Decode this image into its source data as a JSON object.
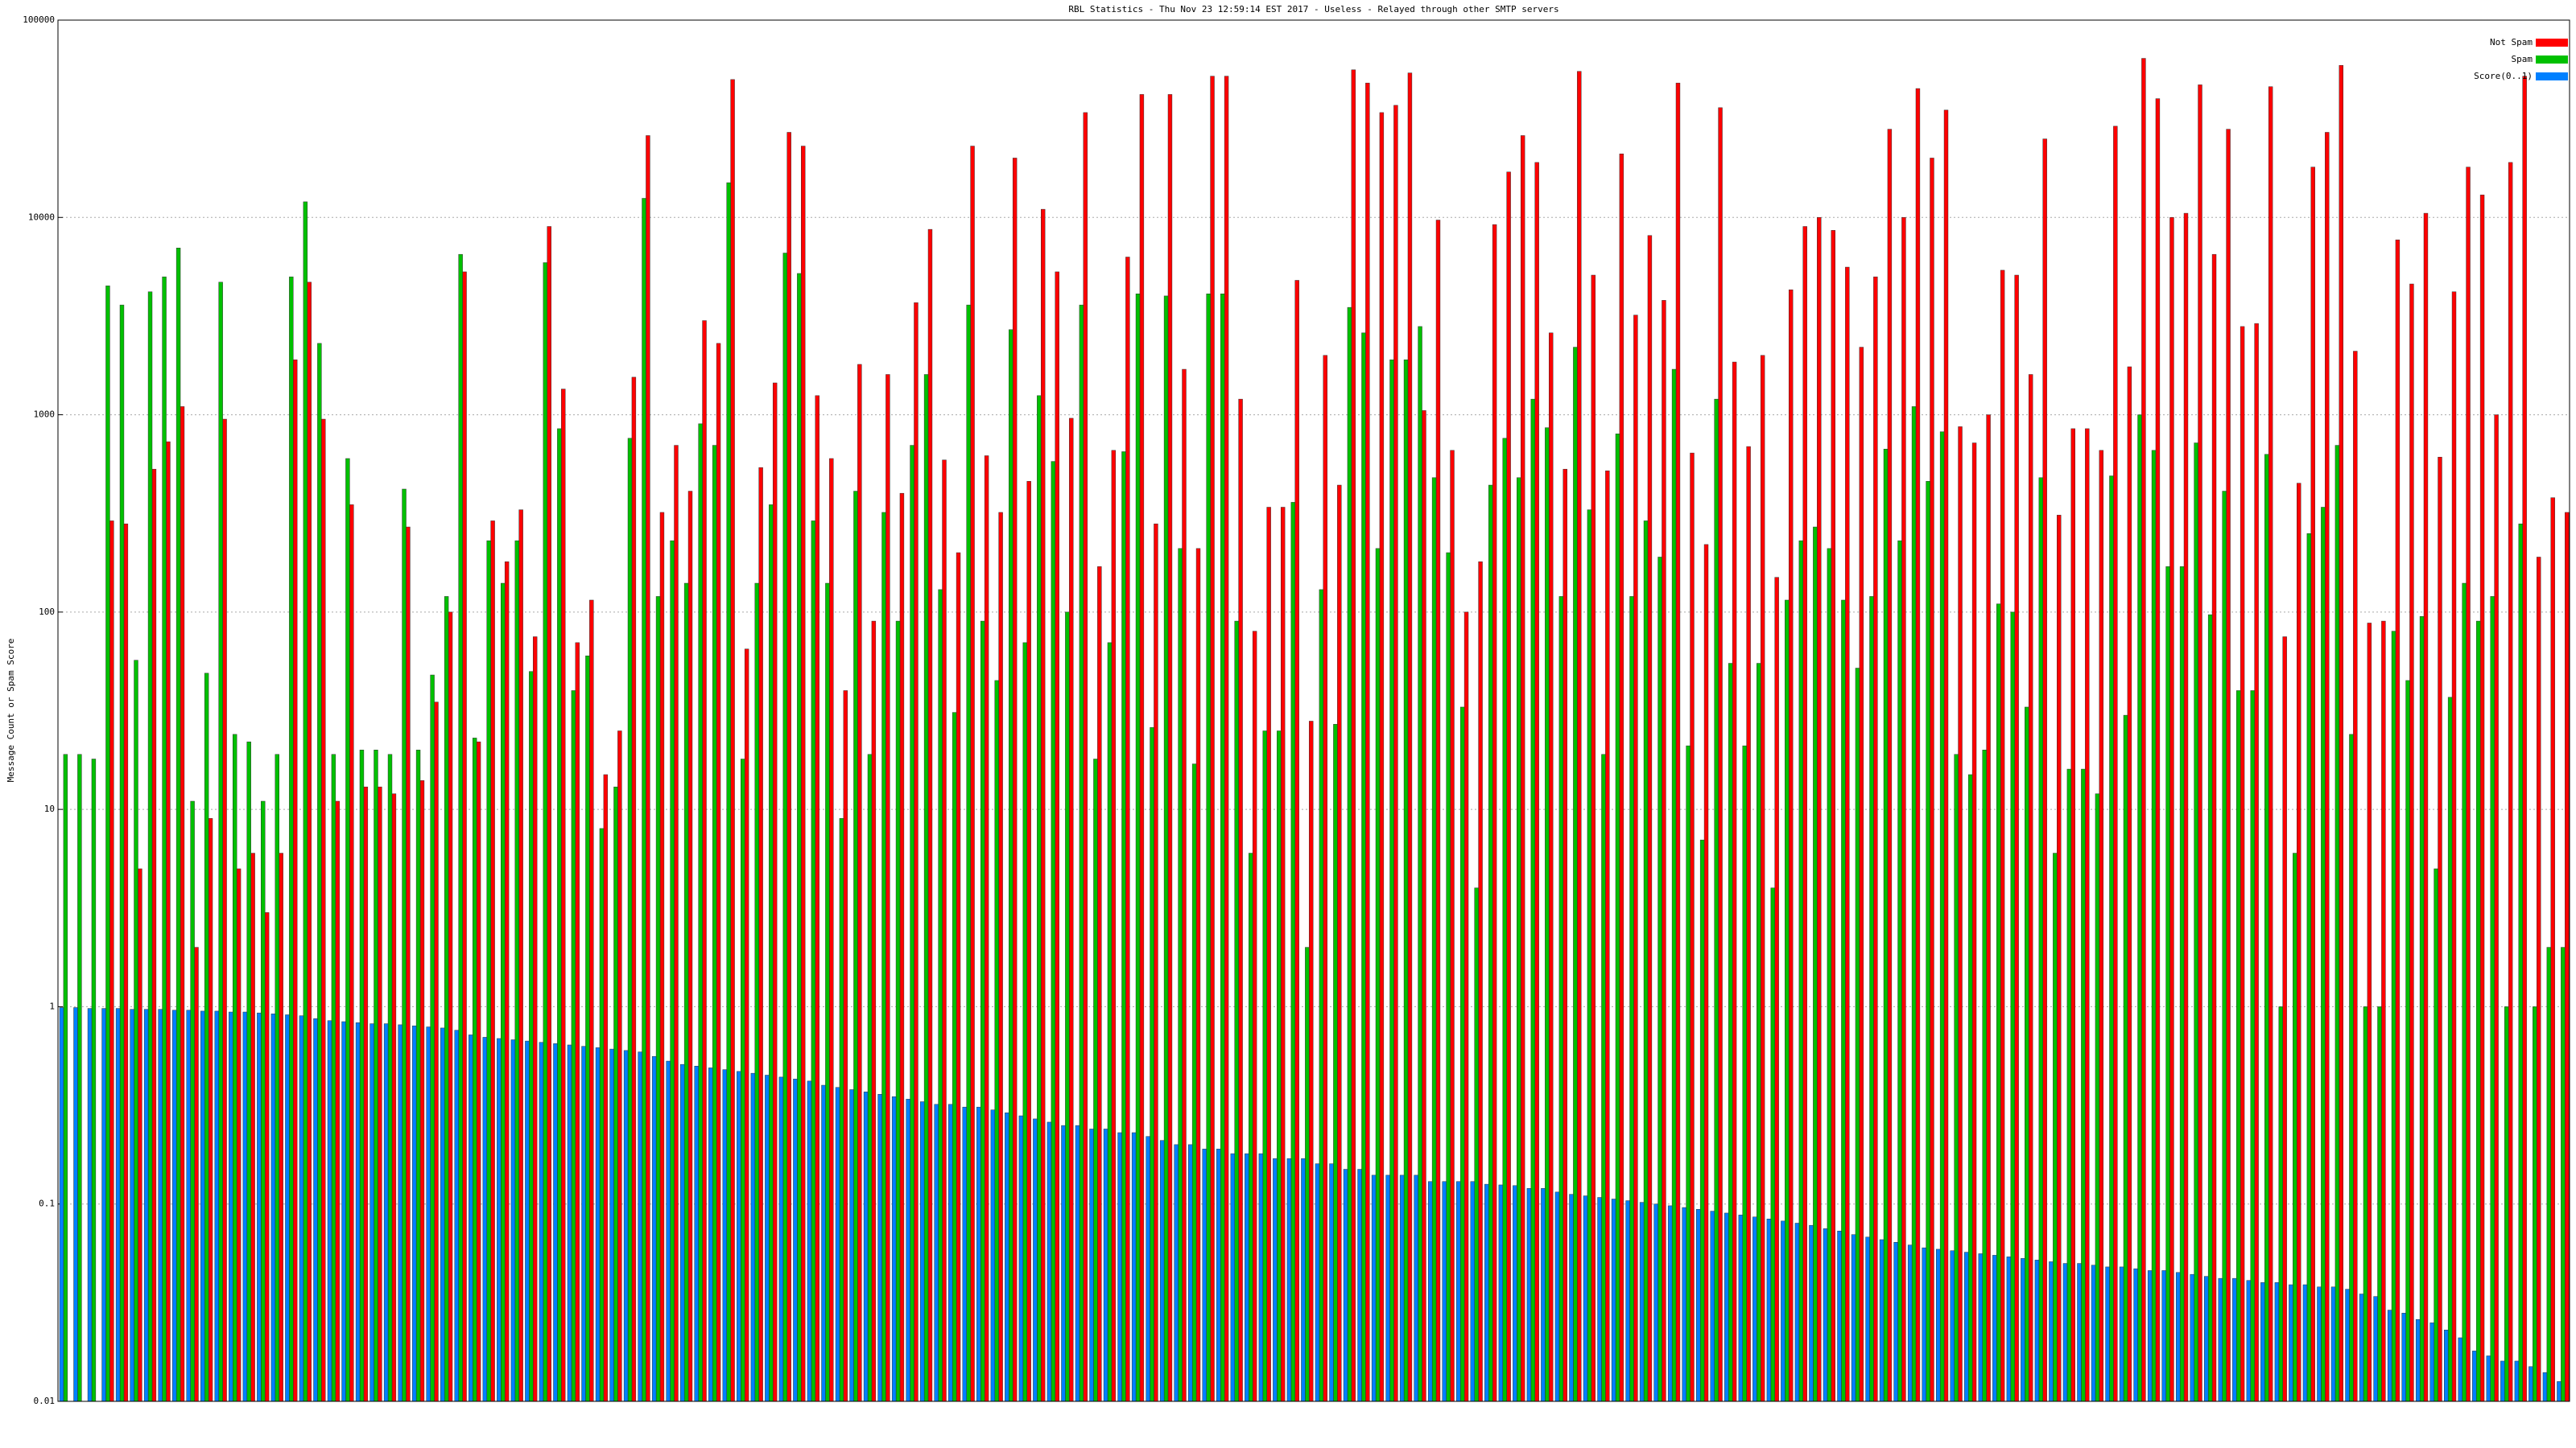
{
  "chart_data": {
    "type": "bar",
    "title": "RBL Statistics - Thu Nov 23 12:59:14 EST 2017 - Useless - Relayed through other SMTP servers",
    "y_label": "Message Count or Spam Score",
    "log_scale": true,
    "grid": true,
    "legend": "top-right",
    "ylim": [
      0.01,
      100000
    ],
    "yticks": [
      0.01,
      0.1,
      1,
      10,
      100,
      1000,
      10000,
      100000
    ],
    "series": [
      {
        "name": "Not Spam",
        "color": "#ff0000",
        "values": [
          null,
          null,
          null,
          290,
          280,
          5,
          530,
          730,
          1100,
          2,
          9,
          950,
          5,
          6,
          3,
          6,
          1900,
          4700,
          950,
          11,
          350,
          13,
          13,
          12,
          270,
          14,
          35,
          100,
          5300,
          22,
          290,
          180,
          330,
          75,
          9000,
          1350,
          70,
          115,
          15,
          25,
          1550,
          26000,
          320,
          700,
          410,
          3000,
          2300,
          50000,
          65,
          540,
          1450,
          27000,
          23000,
          1250,
          600,
          40,
          1800,
          90,
          1600,
          400,
          3700,
          8700,
          590,
          200,
          23000,
          620,
          320,
          20000,
          460,
          11000,
          5300,
          960,
          34000,
          170,
          660,
          6300,
          42000,
          280,
          42000,
          1700,
          210,
          52000,
          52000,
          1200,
          80,
          340,
          340,
          4800,
          28,
          2000,
          440,
          56000,
          48000,
          34000,
          37000,
          54000,
          1050,
          9700,
          660,
          100,
          180,
          9200,
          17000,
          26000,
          19000,
          2600,
          530,
          55000,
          5100,
          520,
          21000,
          3200,
          8100,
          3800,
          48000,
          640,
          220,
          36000,
          1850,
          690,
          2000,
          150,
          4300,
          9000,
          10000,
          8600,
          5600,
          2200,
          5000,
          28000,
          10000,
          45000,
          20000,
          35000,
          870,
          720,
          1000,
          5400,
          5100,
          1600,
          25000,
          310,
          850,
          850,
          660,
          29000,
          1750,
          64000,
          40000,
          10000,
          10500,
          47000,
          6500,
          28000,
          2800,
          2900,
          46000,
          75,
          450,
          18000,
          27000,
          59000,
          2100,
          88,
          90,
          7700,
          4600,
          10500,
          610,
          4200,
          18000,
          13000,
          1000,
          19000,
          52000,
          190,
          380,
          320
        ]
      },
      {
        "name": "Spam",
        "color": "#00c000",
        "values": [
          19,
          19,
          18,
          4500,
          3600,
          57,
          4200,
          5000,
          7000,
          11,
          49,
          4700,
          24,
          22,
          11,
          19,
          5000,
          12000,
          2300,
          19,
          600,
          20,
          20,
          19,
          420,
          20,
          48,
          120,
          6500,
          23,
          230,
          140,
          230,
          50,
          5900,
          850,
          40,
          60,
          8,
          13,
          760,
          12500,
          120,
          230,
          140,
          900,
          700,
          15000,
          18,
          140,
          350,
          6600,
          5200,
          290,
          140,
          9,
          410,
          19,
          320,
          90,
          700,
          1600,
          130,
          31,
          3600,
          90,
          45,
          2700,
          70,
          1250,
          580,
          100,
          3600,
          18,
          70,
          650,
          4100,
          26,
          4000,
          210,
          17,
          4100,
          4100,
          90,
          6,
          25,
          25,
          360,
          2,
          130,
          27,
          3500,
          2600,
          210,
          1900,
          1900,
          2800,
          480,
          200,
          33,
          4,
          440,
          760,
          480,
          1200,
          860,
          120,
          2200,
          330,
          19,
          800,
          120,
          290,
          190,
          1700,
          21,
          7,
          1200,
          55,
          21,
          55,
          4,
          115,
          230,
          270,
          210,
          115,
          52,
          120,
          670,
          230,
          1100,
          460,
          820,
          19,
          15,
          20,
          110,
          100,
          33,
          480,
          6,
          16,
          16,
          12,
          490,
          30,
          1000,
          660,
          170,
          170,
          720,
          97,
          410,
          40,
          40,
          630,
          1,
          6,
          250,
          340,
          700,
          24,
          1,
          1,
          80,
          45,
          95,
          5,
          37,
          140,
          90,
          120,
          1,
          280,
          1,
          2,
          2
        ]
      },
      {
        "name": "Score(0..1)",
        "color": "#0080ff",
        "values": [
          0.99,
          0.99,
          0.98,
          0.98,
          0.98,
          0.97,
          0.97,
          0.97,
          0.96,
          0.96,
          0.95,
          0.95,
          0.94,
          0.94,
          0.93,
          0.92,
          0.91,
          0.9,
          0.87,
          0.85,
          0.84,
          0.83,
          0.82,
          0.82,
          0.81,
          0.8,
          0.79,
          0.78,
          0.76,
          0.72,
          0.7,
          0.69,
          0.68,
          0.67,
          0.66,
          0.65,
          0.64,
          0.63,
          0.62,
          0.61,
          0.6,
          0.59,
          0.56,
          0.53,
          0.51,
          0.5,
          0.49,
          0.48,
          0.47,
          0.46,
          0.45,
          0.44,
          0.43,
          0.42,
          0.4,
          0.39,
          0.38,
          0.37,
          0.36,
          0.35,
          0.34,
          0.33,
          0.32,
          0.32,
          0.31,
          0.31,
          0.3,
          0.29,
          0.28,
          0.27,
          0.26,
          0.25,
          0.25,
          0.24,
          0.24,
          0.23,
          0.23,
          0.22,
          0.21,
          0.2,
          0.2,
          0.19,
          0.19,
          0.18,
          0.18,
          0.18,
          0.17,
          0.17,
          0.17,
          0.16,
          0.16,
          0.15,
          0.15,
          0.14,
          0.14,
          0.14,
          0.14,
          0.13,
          0.13,
          0.13,
          0.13,
          0.126,
          0.125,
          0.124,
          0.12,
          0.12,
          0.115,
          0.112,
          0.11,
          0.108,
          0.106,
          0.104,
          0.102,
          0.1,
          0.098,
          0.096,
          0.094,
          0.092,
          0.09,
          0.088,
          0.086,
          0.084,
          0.082,
          0.08,
          0.078,
          0.075,
          0.073,
          0.07,
          0.068,
          0.066,
          0.064,
          0.062,
          0.06,
          0.059,
          0.058,
          0.057,
          0.056,
          0.055,
          0.054,
          0.053,
          0.052,
          0.051,
          0.05,
          0.05,
          0.049,
          0.048,
          0.048,
          0.047,
          0.046,
          0.046,
          0.045,
          0.044,
          0.043,
          0.042,
          0.042,
          0.041,
          0.04,
          0.04,
          0.039,
          0.039,
          0.038,
          0.038,
          0.037,
          0.035,
          0.034,
          0.029,
          0.028,
          0.026,
          0.025,
          0.023,
          0.021,
          0.018,
          0.017,
          0.016,
          0.016,
          0.015,
          0.014,
          0.0126
        ]
      }
    ]
  }
}
